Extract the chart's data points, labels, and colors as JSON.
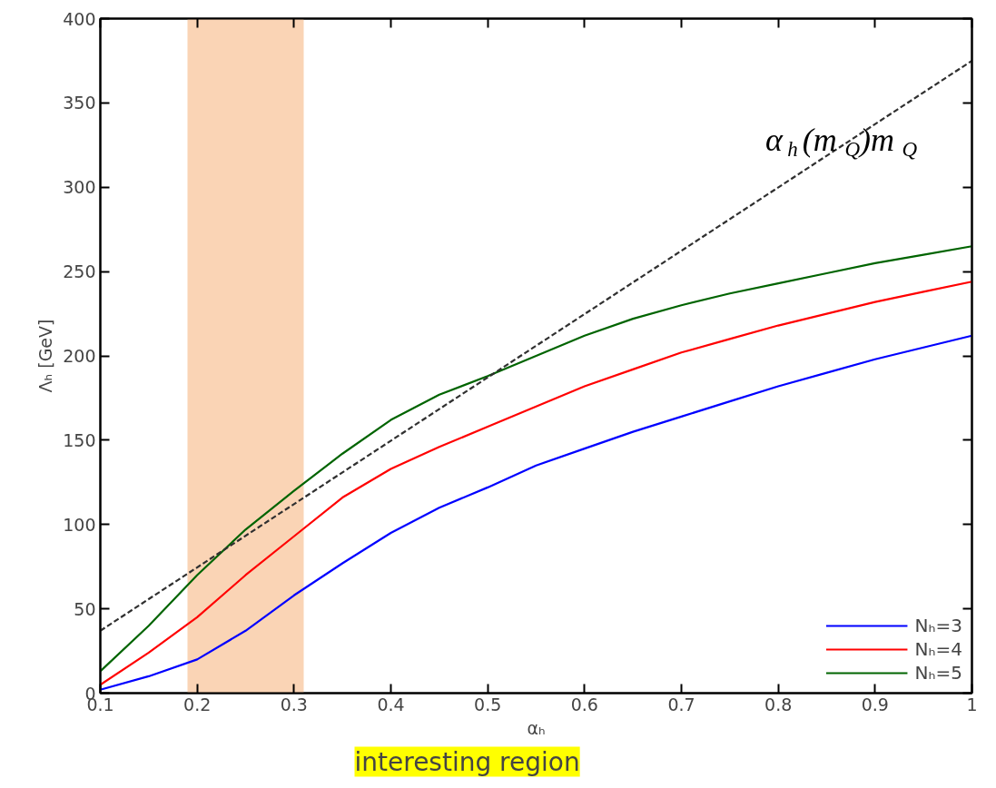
{
  "chart_data": {
    "type": "line",
    "xlabel": "αₕ",
    "ylabel": "Λₕ [GeV]",
    "x": [
      0.1,
      0.15,
      0.2,
      0.25,
      0.3,
      0.35,
      0.4,
      0.45,
      0.5,
      0.55,
      0.6,
      0.65,
      0.7,
      0.75,
      0.8,
      0.85,
      0.9,
      0.95,
      1.0
    ],
    "series": [
      {
        "name": "Nₕ=3",
        "color": "#0000ff",
        "values": [
          2,
          10,
          20,
          37,
          58,
          77,
          95,
          110,
          122,
          135,
          145,
          155,
          164,
          173,
          182,
          190,
          198,
          205,
          212
        ]
      },
      {
        "name": "Nₕ=4",
        "color": "#ff0000",
        "values": [
          5,
          24,
          45,
          70,
          93,
          116,
          133,
          146,
          158,
          170,
          182,
          192,
          202,
          210,
          218,
          225,
          232,
          238,
          244
        ]
      },
      {
        "name": "Nₕ=5",
        "color": "#006400",
        "values": [
          13,
          40,
          70,
          97,
          120,
          142,
          162,
          177,
          188,
          200,
          212,
          222,
          230,
          237,
          243,
          249,
          255,
          260,
          265
        ]
      },
      {
        "color": "#303030",
        "line_style": "dashed",
        "x": [
          0.1,
          1.0
        ],
        "values": [
          37,
          375
        ]
      }
    ],
    "xlim": [
      0.1,
      1.0
    ],
    "ylim": [
      0,
      400
    ],
    "xticks": [
      0.1,
      0.2,
      0.3,
      0.4,
      0.5,
      0.6,
      0.7,
      0.8,
      0.9,
      {
        "value": 1.0,
        "label": "1"
      }
    ],
    "yticks": [
      0,
      50,
      100,
      150,
      200,
      250,
      300,
      350,
      400
    ],
    "bands": [
      {
        "axis": "x",
        "from": 0.19,
        "to": 0.31,
        "label": "interesting region",
        "color": "#f9cda8"
      }
    ],
    "annotations": [
      "α$_{h}$(m$_{Q}$)m$_{Q}$"
    ],
    "legend": "bottom right",
    "grid": false,
    "line_style": "solid",
    "marker": "none"
  }
}
